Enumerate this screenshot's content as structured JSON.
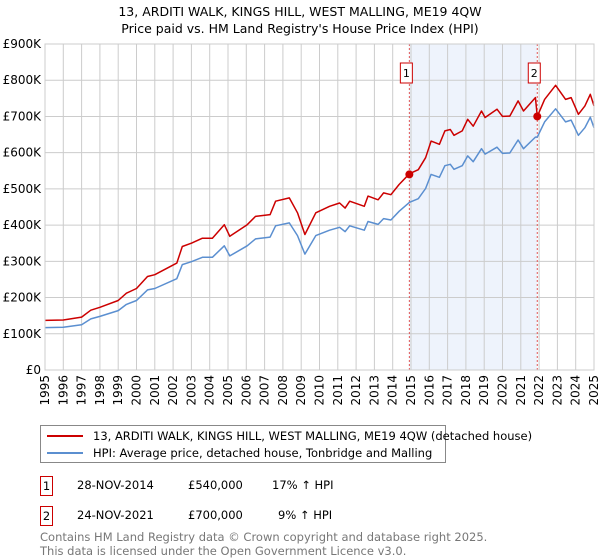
{
  "title_line1": "13, ARDITI WALK, KINGS HILL, WEST MALLING, ME19 4QW",
  "title_line2": "Price paid vs. HM Land Registry's House Price Index (HPI)",
  "colors": {
    "property": "#cc0000",
    "hpi": "#5b8fd0",
    "shade": "#eef3fc",
    "grid": "#cccccc"
  },
  "chart_data": {
    "type": "line",
    "xlim": [
      1995,
      2025
    ],
    "ylim": [
      0,
      900000
    ],
    "y_ticks": [
      0,
      100000,
      200000,
      300000,
      400000,
      500000,
      600000,
      700000,
      800000,
      900000
    ],
    "y_tick_labels": [
      "£0",
      "£100K",
      "£200K",
      "£300K",
      "£400K",
      "£500K",
      "£600K",
      "£700K",
      "£800K",
      "£900K"
    ],
    "x_ticks": [
      "1995",
      "1996",
      "1997",
      "1998",
      "1999",
      "2000",
      "2001",
      "2002",
      "2003",
      "2004",
      "2005",
      "2006",
      "2007",
      "2008",
      "2009",
      "2010",
      "2011",
      "2012",
      "2013",
      "2014",
      "2015",
      "2016",
      "2017",
      "2018",
      "2019",
      "2020",
      "2021",
      "2022",
      "2023",
      "2024",
      "2025"
    ],
    "grid": true,
    "x": [
      1995,
      1996,
      1997,
      1997.5,
      1998,
      1999,
      1999.45,
      2000,
      2000.6,
      2001,
      2002.2,
      2002.5,
      2003,
      2003.6,
      2004.15,
      2004.8,
      2005.1,
      2006.05,
      2006.5,
      2007.3,
      2007.6,
      2008.35,
      2008.8,
      2009.2,
      2009.8,
      2010.55,
      2011.1,
      2011.4,
      2011.65,
      2012.45,
      2012.65,
      2013.2,
      2013.5,
      2013.9,
      2014.35,
      2014.92,
      2015.4,
      2015.8,
      2016.1,
      2016.55,
      2016.85,
      2017.15,
      2017.35,
      2017.8,
      2018.1,
      2018.4,
      2018.85,
      2019.05,
      2019.7,
      2020.0,
      2020.4,
      2020.85,
      2021.15,
      2021.8,
      2021.9,
      2022.3,
      2022.9,
      2023.45,
      2023.75,
      2024.15,
      2024.5,
      2024.8,
      2025.0
    ],
    "series": [
      {
        "name": "13, ARDITI WALK, KINGS HILL, WEST MALLING, ME19 4QW (detached house)",
        "color": "#cc0000",
        "values": [
          137,
          138,
          146,
          165,
          173,
          192,
          212,
          225,
          258,
          263,
          295,
          341,
          350,
          364,
          364,
          401,
          369,
          401,
          424,
          429,
          466,
          475,
          434,
          374,
          434,
          452,
          461,
          447,
          466,
          452,
          480,
          470,
          489,
          484,
          512,
          542,
          553,
          586,
          632,
          623,
          660,
          664,
          648,
          660,
          692,
          673,
          715,
          697,
          720,
          700,
          701,
          743,
          715,
          752,
          700,
          747,
          786,
          747,
          752,
          706,
          729,
          761,
          729
        ],
        "unit": "£K"
      },
      {
        "name": "HPI: Average price, detached house, Tonbridge and Malling",
        "color": "#5b8fd0",
        "values": [
          117,
          118,
          125,
          141,
          148,
          164,
          181,
          192,
          221,
          225,
          252,
          291,
          299,
          311,
          311,
          343,
          315,
          343,
          362,
          367,
          398,
          406,
          371,
          320,
          371,
          386,
          394,
          382,
          398,
          386,
          410,
          402,
          418,
          414,
          438,
          463,
          473,
          501,
          540,
          532,
          564,
          568,
          554,
          564,
          591,
          575,
          611,
          596,
          615,
          598,
          599,
          635,
          611,
          643,
          643,
          685,
          721,
          685,
          690,
          648,
          669,
          698,
          669
        ],
        "unit": "£K"
      }
    ],
    "annotations": [
      {
        "label": "1",
        "x": 2014.91,
        "value": 540000
      },
      {
        "label": "2",
        "x": 2021.9,
        "value": 700000
      }
    ],
    "shaded_range": [
      2014.91,
      2021.9
    ],
    "legend_placement": "bottom"
  },
  "legend": [
    {
      "label": "13, ARDITI WALK, KINGS HILL, WEST MALLING, ME19 4QW (detached house)"
    },
    {
      "label": "HPI: Average price, detached house, Tonbridge and Malling"
    }
  ],
  "sales": [
    {
      "num": "1",
      "date": "28-NOV-2014",
      "price": "£540,000",
      "hpi": "17% ↑ HPI"
    },
    {
      "num": "2",
      "date": "24-NOV-2021",
      "price": "£700,000",
      "hpi": "9% ↑ HPI"
    }
  ],
  "footer_line1": "Contains HM Land Registry data © Crown copyright and database right 2025.",
  "footer_line2": "This data is licensed under the Open Government Licence v3.0."
}
